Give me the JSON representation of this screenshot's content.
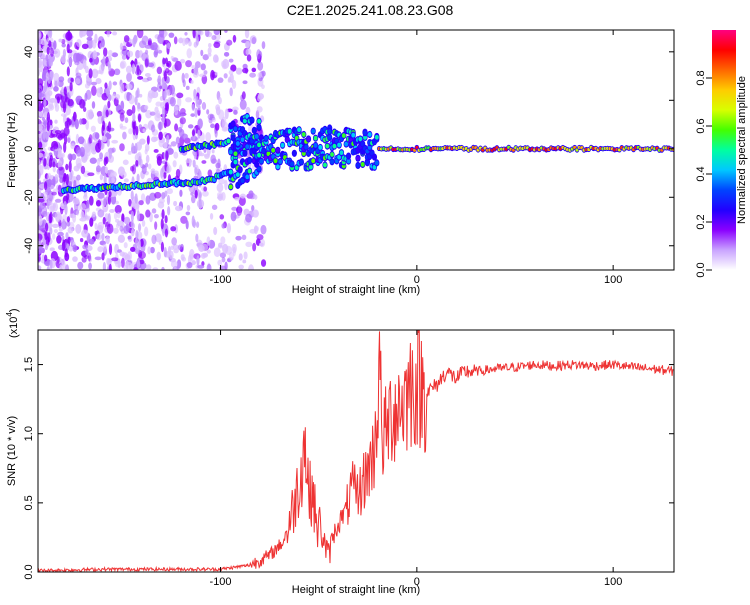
{
  "title": "C2E1.2025.241.08.23.G08",
  "chart_data": [
    {
      "type": "heatmap",
      "xlabel": "Height of straight line (km)",
      "ylabel": "Frequency (Hz)",
      "xlim": [
        -193,
        131
      ],
      "ylim": [
        -50,
        49
      ],
      "xticks": [
        -100,
        0,
        100
      ],
      "yticks": [
        -40,
        -20,
        0,
        20,
        40
      ],
      "colorbar": {
        "label": "Normalized spectral amplitude",
        "range": [
          0,
          1
        ],
        "ticks": [
          "0.0",
          "0.2",
          "0.4",
          "0.6",
          "0.8"
        ],
        "colors": [
          "#ffffff",
          "#c9a3ff",
          "#8a00ff",
          "#2200ff",
          "#0044ff",
          "#00c8ff",
          "#00ffa0",
          "#44ff00",
          "#d8ff00",
          "#ffcc00",
          "#ff6600",
          "#ff0000",
          "#ff0080"
        ]
      },
      "tracks": [
        {
          "x": [
            -180,
            -160,
            -140,
            -125,
            -115,
            -105,
            -95,
            -85,
            -75,
            -65,
            -55,
            -45,
            -35,
            -25,
            -15,
            -5,
            0,
            20,
            50,
            80,
            100,
            131
          ],
          "y": [
            -17,
            -16,
            -15,
            -14,
            -14,
            -13,
            -9,
            -4,
            -1,
            0,
            0,
            1,
            0,
            0,
            0,
            0,
            0,
            0,
            0,
            0,
            0,
            0
          ]
        },
        {
          "x": [
            -120,
            -110,
            -100,
            -95,
            -90,
            -85,
            -80
          ],
          "y": [
            0,
            1,
            2,
            3,
            5,
            6,
            4
          ]
        }
      ]
    },
    {
      "type": "line",
      "xlabel": "Height of straight line (km)",
      "ylabel": "SNR (10 * v/v)",
      "scale_label": "(x10",
      "scale_exp": "4",
      "xlim": [
        -193,
        131
      ],
      "ylim": [
        0,
        1.75
      ],
      "xticks": [
        -100,
        0,
        100
      ],
      "yticks": [
        "0.0",
        "0.5",
        "1.0",
        "1.5"
      ],
      "color": "#ee3333",
      "series": [
        {
          "x": [
            -193,
            -160,
            -130,
            -100,
            -85,
            -75,
            -68,
            -64,
            -60,
            -57,
            -55,
            -53,
            -51,
            -49,
            -47,
            -45,
            -43,
            -40,
            -36,
            -33,
            -30,
            -26,
            -22,
            -20,
            -19,
            -18,
            -16,
            -13,
            -10,
            -6,
            -3,
            0,
            5,
            10,
            15,
            20,
            25,
            30,
            40,
            50,
            60,
            70,
            80,
            90,
            100,
            110,
            120,
            131
          ],
          "y": [
            0.01,
            0.02,
            0.02,
            0.02,
            0.05,
            0.12,
            0.22,
            0.4,
            0.65,
            0.95,
            0.55,
            0.6,
            0.3,
            0.35,
            0.2,
            0.12,
            0.25,
            0.35,
            0.45,
            0.6,
            0.55,
            0.7,
            0.85,
            1.2,
            1.74,
            0.95,
            1.0,
            1.15,
            1.2,
            1.25,
            1.35,
            1.35,
            1.3,
            1.35,
            1.45,
            1.4,
            1.45,
            1.45,
            1.47,
            1.48,
            1.5,
            1.49,
            1.5,
            1.49,
            1.5,
            1.48,
            1.47,
            1.45
          ]
        }
      ]
    }
  ]
}
